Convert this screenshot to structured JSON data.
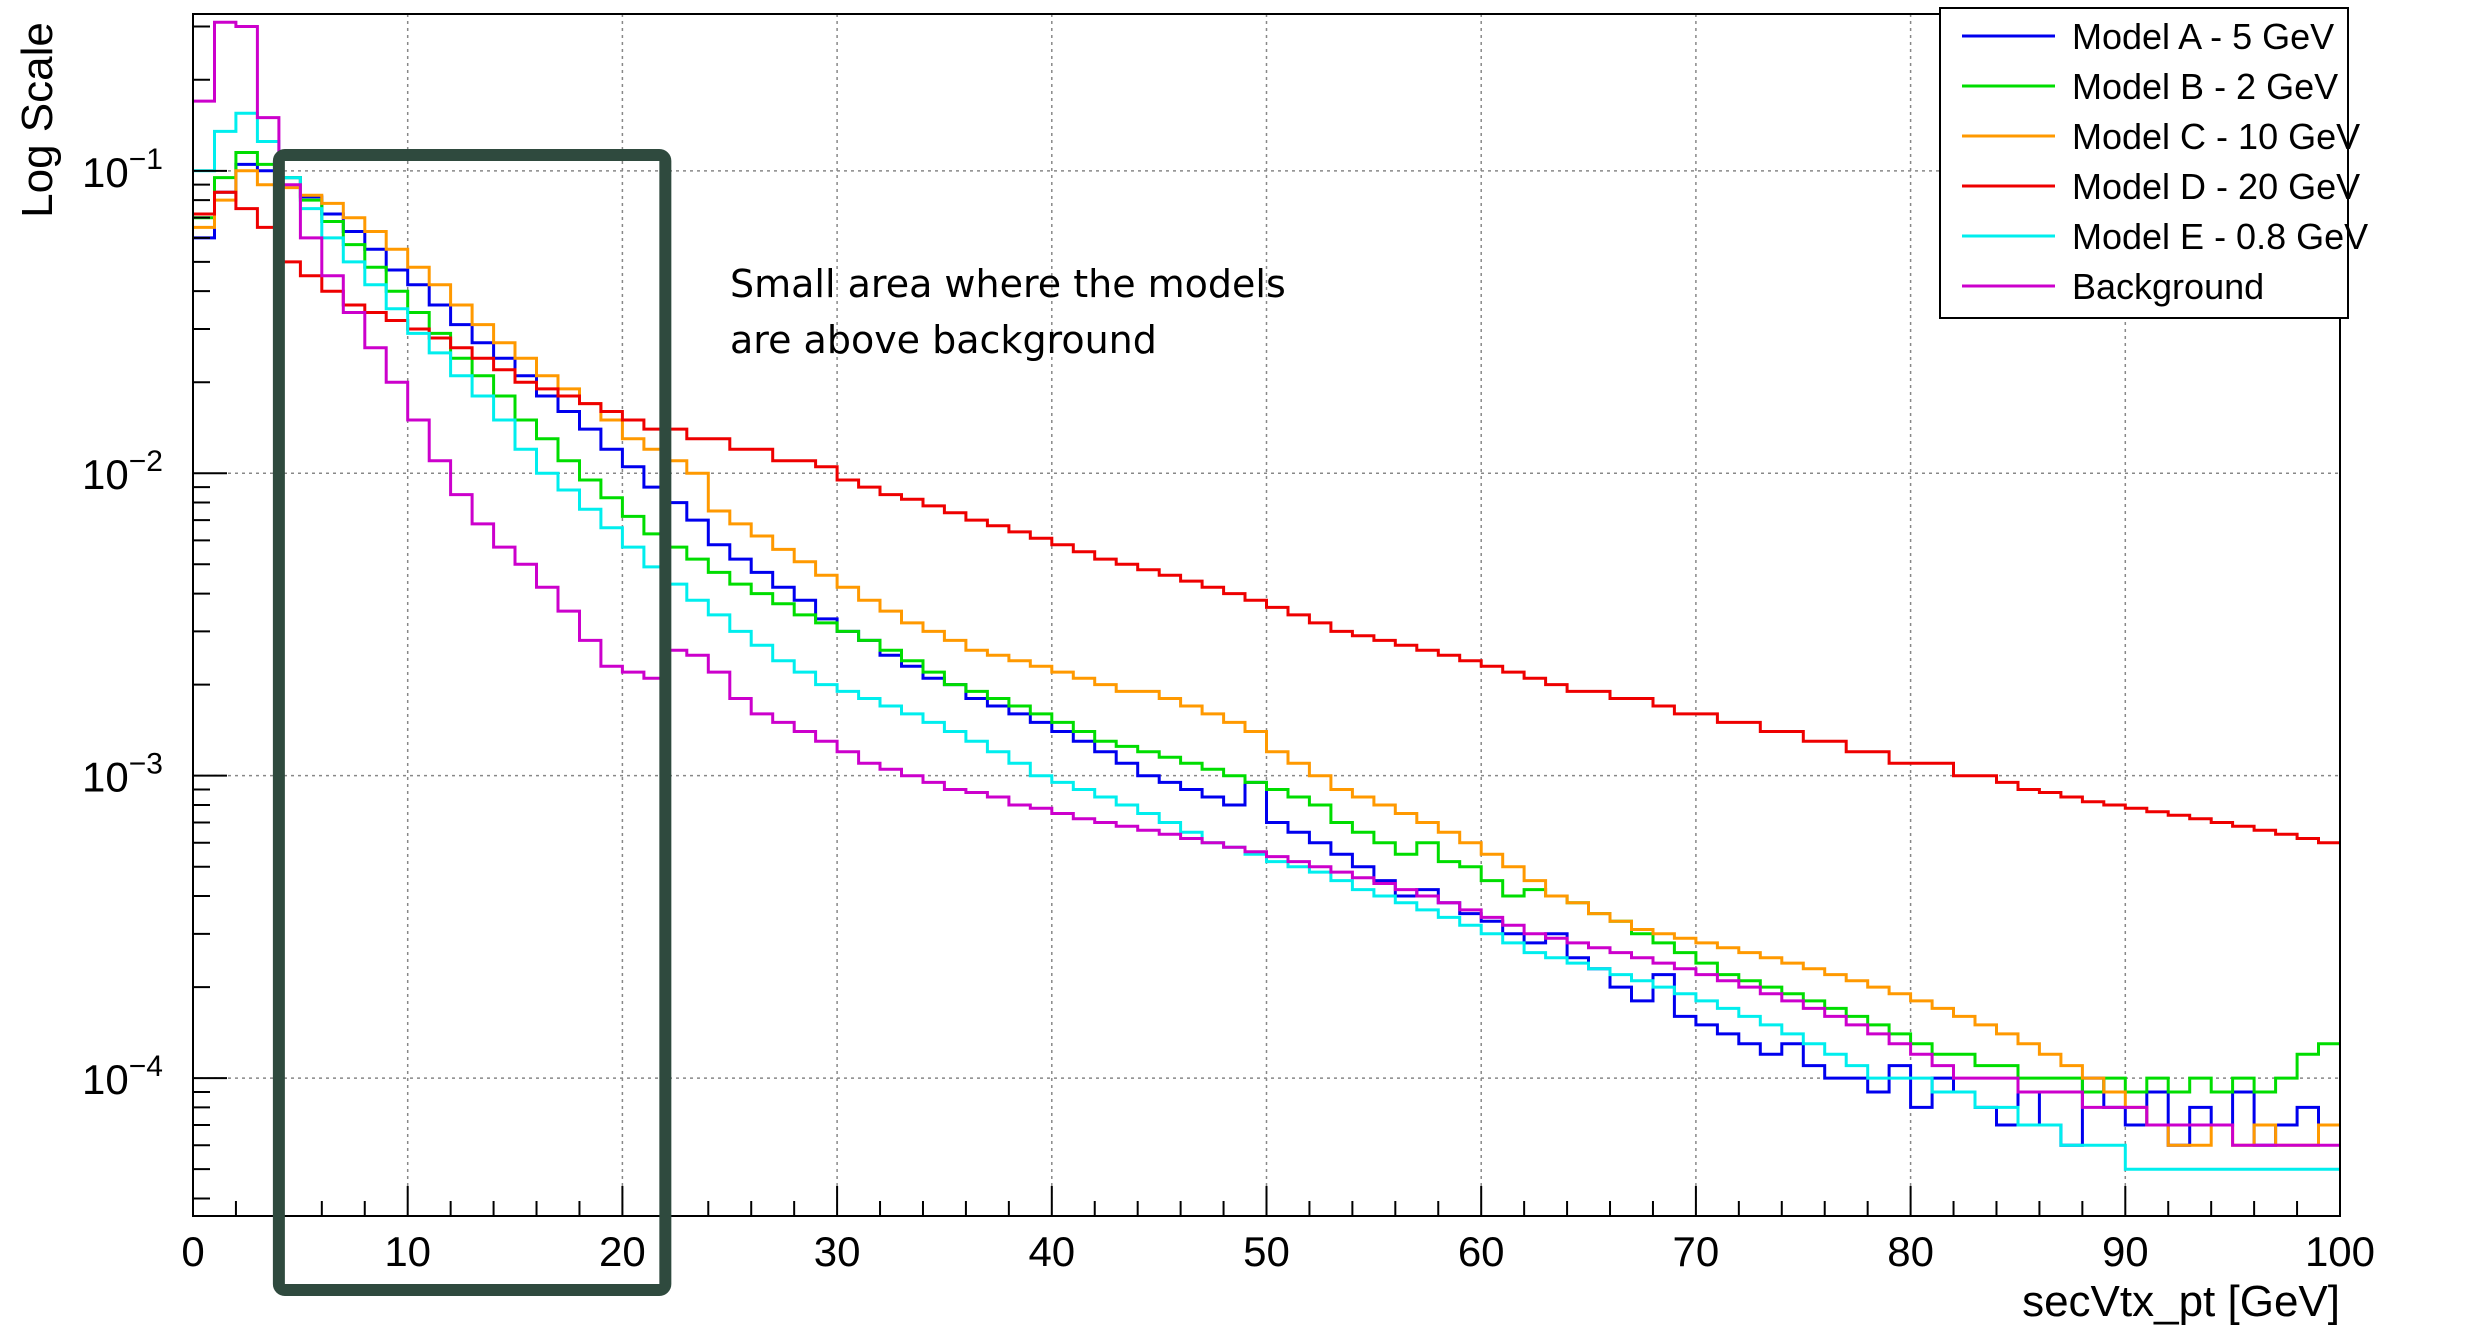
{
  "chart_data": {
    "type": "line",
    "title": "",
    "xlabel": "secVtx_pt [GeV]",
    "ylabel": "Log Scale",
    "xlim": [
      0,
      100
    ],
    "ylim": [
      3.5e-05,
      0.33
    ],
    "y_scale": "log",
    "bin_width": 1,
    "grid": true,
    "legend_position": "top-right",
    "x_ticks": [
      {
        "value": 0,
        "label": "0"
      },
      {
        "value": 10,
        "label": "10"
      },
      {
        "value": 20,
        "label": "20"
      },
      {
        "value": 30,
        "label": "30"
      },
      {
        "value": 40,
        "label": "40"
      },
      {
        "value": 50,
        "label": "50"
      },
      {
        "value": 60,
        "label": "60"
      },
      {
        "value": 70,
        "label": "70"
      },
      {
        "value": 80,
        "label": "80"
      },
      {
        "value": 90,
        "label": "90"
      },
      {
        "value": 100,
        "label": "100"
      }
    ],
    "y_ticks": [
      {
        "value": 0.1,
        "base": "10",
        "exp": "−1"
      },
      {
        "value": 0.01,
        "base": "10",
        "exp": "−2"
      },
      {
        "value": 0.001,
        "base": "10",
        "exp": "−3"
      },
      {
        "value": 0.0001,
        "base": "10",
        "exp": "−4"
      }
    ],
    "annotation": {
      "lines": [
        "Small area where the models",
        "are above background"
      ],
      "highlight_x_range": [
        4,
        22
      ],
      "highlight_color": "#2f4a3e"
    },
    "series": [
      {
        "name": "Model A - 5 GeV",
        "color": "#0000ee",
        "values": [
          0.06,
          0.085,
          0.105,
          0.1,
          0.095,
          0.082,
          0.072,
          0.063,
          0.055,
          0.047,
          0.042,
          0.036,
          0.031,
          0.027,
          0.024,
          0.021,
          0.018,
          0.016,
          0.014,
          0.012,
          0.0105,
          0.009,
          0.008,
          0.007,
          0.0058,
          0.0052,
          0.0047,
          0.0042,
          0.0038,
          0.0033,
          0.003,
          0.0028,
          0.0025,
          0.0023,
          0.0021,
          0.002,
          0.0018,
          0.0017,
          0.0016,
          0.0015,
          0.0014,
          0.0013,
          0.0012,
          0.0011,
          0.001,
          0.00095,
          0.0009,
          0.00085,
          0.0008,
          0.00095,
          0.0007,
          0.00065,
          0.0006,
          0.00055,
          0.0005,
          0.00045,
          0.0004,
          0.00042,
          0.00038,
          0.00035,
          0.00033,
          0.0003,
          0.00028,
          0.0003,
          0.00025,
          0.00023,
          0.0002,
          0.00018,
          0.00022,
          0.00016,
          0.00015,
          0.00014,
          0.00013,
          0.00012,
          0.00013,
          0.00011,
          0.0001,
          0.0001,
          9e-05,
          0.00011,
          8e-05,
          0.0001,
          9e-05,
          8e-05,
          7e-05,
          9e-05,
          7e-05,
          6e-05,
          0.0001,
          8e-05,
          7e-05,
          9e-05,
          6e-05,
          8e-05,
          7e-05,
          9e-05,
          6e-05,
          7e-05,
          8e-05,
          7e-05
        ]
      },
      {
        "name": "Model B - 2 GeV",
        "color": "#00dd00",
        "values": [
          0.07,
          0.095,
          0.115,
          0.105,
          0.095,
          0.08,
          0.068,
          0.057,
          0.048,
          0.04,
          0.034,
          0.029,
          0.024,
          0.021,
          0.018,
          0.015,
          0.013,
          0.011,
          0.0095,
          0.0083,
          0.0072,
          0.0063,
          0.0057,
          0.0052,
          0.0047,
          0.0043,
          0.004,
          0.0037,
          0.0034,
          0.0032,
          0.003,
          0.0028,
          0.0026,
          0.0024,
          0.0022,
          0.002,
          0.0019,
          0.0018,
          0.0017,
          0.0016,
          0.0015,
          0.0014,
          0.0013,
          0.00125,
          0.0012,
          0.00115,
          0.0011,
          0.00105,
          0.001,
          0.00095,
          0.0009,
          0.00085,
          0.0008,
          0.0007,
          0.00065,
          0.0006,
          0.00055,
          0.0006,
          0.00052,
          0.0005,
          0.00045,
          0.0004,
          0.00042,
          0.0004,
          0.00038,
          0.00035,
          0.00033,
          0.0003,
          0.00028,
          0.00026,
          0.00024,
          0.00022,
          0.00021,
          0.0002,
          0.00019,
          0.00018,
          0.00017,
          0.00016,
          0.00015,
          0.00014,
          0.00013,
          0.00012,
          0.00012,
          0.00011,
          0.00011,
          0.0001,
          0.0001,
          0.0001,
          9e-05,
          0.0001,
          9e-05,
          0.0001,
          9e-05,
          0.0001,
          9e-05,
          0.0001,
          9e-05,
          0.0001,
          0.00012,
          0.00013
        ]
      },
      {
        "name": "Model C - 10 GeV",
        "color": "#ff9900",
        "values": [
          0.065,
          0.08,
          0.1,
          0.09,
          0.088,
          0.083,
          0.078,
          0.07,
          0.063,
          0.055,
          0.048,
          0.042,
          0.036,
          0.031,
          0.027,
          0.024,
          0.021,
          0.019,
          0.017,
          0.015,
          0.013,
          0.012,
          0.011,
          0.01,
          0.0075,
          0.0068,
          0.0062,
          0.0056,
          0.0051,
          0.0046,
          0.0042,
          0.0038,
          0.0035,
          0.0032,
          0.003,
          0.0028,
          0.0026,
          0.0025,
          0.0024,
          0.0023,
          0.0022,
          0.0021,
          0.002,
          0.0019,
          0.0019,
          0.0018,
          0.0017,
          0.0016,
          0.0015,
          0.0014,
          0.0012,
          0.0011,
          0.001,
          0.0009,
          0.00085,
          0.0008,
          0.00075,
          0.0007,
          0.00065,
          0.0006,
          0.00055,
          0.0005,
          0.00045,
          0.0004,
          0.00038,
          0.00035,
          0.00033,
          0.00031,
          0.0003,
          0.00029,
          0.00028,
          0.00027,
          0.00026,
          0.00025,
          0.00024,
          0.00023,
          0.00022,
          0.00021,
          0.0002,
          0.00019,
          0.00018,
          0.00017,
          0.00016,
          0.00015,
          0.00014,
          0.00013,
          0.00012,
          0.00011,
          0.0001,
          9e-05,
          8e-05,
          7e-05,
          6e-05,
          6e-05,
          7e-05,
          6e-05,
          7e-05,
          6e-05,
          6e-05,
          7e-05
        ]
      },
      {
        "name": "Model D - 20 GeV",
        "color": "#ee0000",
        "values": [
          0.072,
          0.085,
          0.075,
          0.065,
          0.05,
          0.045,
          0.04,
          0.036,
          0.034,
          0.032,
          0.03,
          0.028,
          0.026,
          0.024,
          0.022,
          0.02,
          0.019,
          0.018,
          0.017,
          0.016,
          0.015,
          0.014,
          0.014,
          0.013,
          0.013,
          0.012,
          0.012,
          0.011,
          0.011,
          0.0105,
          0.0095,
          0.009,
          0.0085,
          0.0082,
          0.0078,
          0.0074,
          0.007,
          0.0067,
          0.0064,
          0.0061,
          0.0058,
          0.0055,
          0.0052,
          0.005,
          0.0048,
          0.0046,
          0.0044,
          0.0042,
          0.004,
          0.0038,
          0.0036,
          0.0034,
          0.0032,
          0.003,
          0.0029,
          0.0028,
          0.0027,
          0.0026,
          0.0025,
          0.0024,
          0.0023,
          0.0022,
          0.0021,
          0.002,
          0.0019,
          0.0019,
          0.0018,
          0.0018,
          0.0017,
          0.0016,
          0.0016,
          0.0015,
          0.0015,
          0.0014,
          0.0014,
          0.0013,
          0.0013,
          0.0012,
          0.0012,
          0.0011,
          0.0011,
          0.0011,
          0.001,
          0.001,
          0.00095,
          0.0009,
          0.00088,
          0.00085,
          0.00082,
          0.0008,
          0.00078,
          0.00076,
          0.00074,
          0.00072,
          0.0007,
          0.00068,
          0.00066,
          0.00064,
          0.00062,
          0.0006
        ]
      },
      {
        "name": "Model E - 0.8 GeV",
        "color": "#00eeee",
        "values": [
          0.1,
          0.135,
          0.155,
          0.125,
          0.095,
          0.075,
          0.06,
          0.05,
          0.042,
          0.035,
          0.029,
          0.025,
          0.021,
          0.018,
          0.015,
          0.012,
          0.01,
          0.0088,
          0.0076,
          0.0066,
          0.0057,
          0.0049,
          0.0043,
          0.0038,
          0.0034,
          0.003,
          0.0027,
          0.0024,
          0.0022,
          0.002,
          0.0019,
          0.0018,
          0.0017,
          0.0016,
          0.0015,
          0.0014,
          0.0013,
          0.0012,
          0.0011,
          0.001,
          0.00095,
          0.0009,
          0.00085,
          0.0008,
          0.00075,
          0.0007,
          0.00065,
          0.0006,
          0.00058,
          0.00055,
          0.00052,
          0.0005,
          0.00048,
          0.00045,
          0.00042,
          0.0004,
          0.00038,
          0.00036,
          0.00034,
          0.00032,
          0.0003,
          0.00028,
          0.00026,
          0.00025,
          0.00024,
          0.00023,
          0.00022,
          0.00021,
          0.0002,
          0.00019,
          0.00018,
          0.00017,
          0.00016,
          0.00015,
          0.00014,
          0.00013,
          0.00012,
          0.00011,
          0.0001,
          0.0001,
          0.0001,
          9e-05,
          9e-05,
          8e-05,
          8e-05,
          7e-05,
          7e-05,
          6e-05,
          6e-05,
          6e-05,
          5e-05,
          5e-05,
          5e-05,
          5e-05,
          5e-05,
          5e-05,
          5e-05,
          5e-05,
          5e-05,
          5e-05
        ]
      },
      {
        "name": "Background",
        "color": "#cc00cc",
        "values": [
          0.17,
          0.31,
          0.3,
          0.15,
          0.09,
          0.06,
          0.045,
          0.034,
          0.026,
          0.02,
          0.015,
          0.011,
          0.0085,
          0.0068,
          0.0057,
          0.005,
          0.0042,
          0.0035,
          0.0028,
          0.0023,
          0.0022,
          0.0021,
          0.0026,
          0.0025,
          0.0022,
          0.0018,
          0.0016,
          0.0015,
          0.0014,
          0.0013,
          0.0012,
          0.0011,
          0.00105,
          0.001,
          0.00095,
          0.0009,
          0.00088,
          0.00085,
          0.0008,
          0.00078,
          0.00075,
          0.00072,
          0.0007,
          0.00068,
          0.00066,
          0.00064,
          0.00062,
          0.0006,
          0.00058,
          0.00056,
          0.00054,
          0.00052,
          0.0005,
          0.00048,
          0.00046,
          0.00044,
          0.00042,
          0.0004,
          0.00038,
          0.00036,
          0.00034,
          0.00032,
          0.0003,
          0.00029,
          0.00028,
          0.00027,
          0.00026,
          0.00025,
          0.00024,
          0.00023,
          0.00022,
          0.00021,
          0.0002,
          0.00019,
          0.00018,
          0.00017,
          0.00016,
          0.00015,
          0.00014,
          0.00013,
          0.00012,
          0.00011,
          0.0001,
          0.0001,
          0.0001,
          9e-05,
          9e-05,
          9e-05,
          8e-05,
          8e-05,
          8e-05,
          7e-05,
          7e-05,
          7e-05,
          7e-05,
          6e-05,
          6e-05,
          6e-05,
          6e-05,
          6e-05
        ]
      }
    ]
  }
}
